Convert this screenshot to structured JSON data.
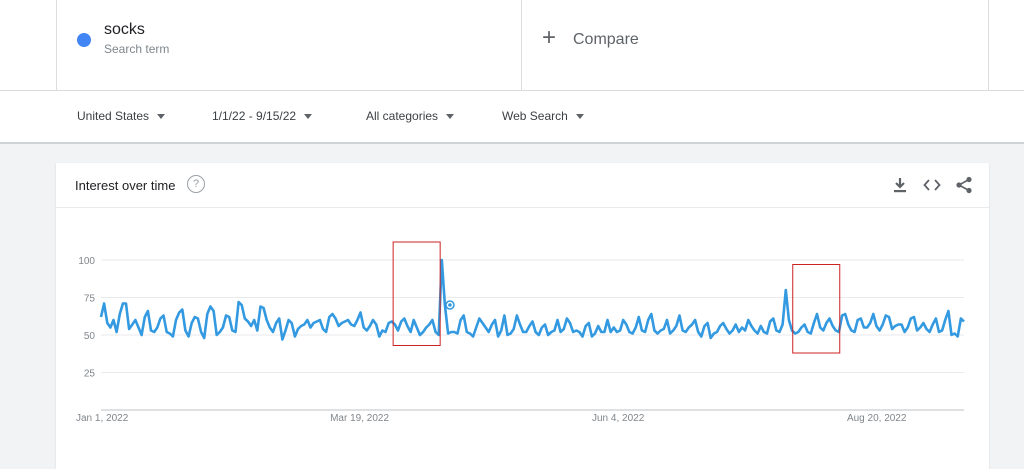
{
  "search_term": {
    "name": "socks",
    "subtitle": "Search term",
    "color": "#4285f4"
  },
  "compare": {
    "plus": "+",
    "label": "Compare"
  },
  "filters": {
    "region": "United States",
    "date_range": "1/1/22 - 9/15/22",
    "category": "All categories",
    "search_type": "Web Search"
  },
  "card": {
    "title": "Interest over time",
    "help_icon": "help-circle-icon",
    "actions": [
      "download-icon",
      "embed-code-icon",
      "share-icon"
    ]
  },
  "chart_data": {
    "type": "line",
    "title": "Interest over time",
    "series": [
      {
        "color": "#3399e0",
        "x_start": "2022-01-01",
        "x_end": "2022-09-15",
        "values": [
          62,
          71,
          58,
          55,
          60,
          52,
          64,
          71,
          71,
          54,
          57,
          60,
          55,
          50,
          62,
          66,
          53,
          52,
          55,
          61,
          63,
          52,
          51,
          49,
          60,
          65,
          67,
          53,
          49,
          58,
          62,
          61,
          52,
          48,
          64,
          69,
          66,
          50,
          52,
          55,
          63,
          62,
          53,
          52,
          72,
          70,
          61,
          59,
          56,
          60,
          53,
          69,
          68,
          60,
          55,
          52,
          58,
          61,
          47,
          53,
          60,
          58,
          49,
          54,
          56,
          57,
          60,
          55,
          58,
          59,
          60,
          54,
          52,
          62,
          64,
          61,
          56,
          58,
          59,
          60,
          57,
          56,
          60,
          65,
          55,
          53,
          56,
          60,
          57,
          49,
          53,
          52,
          58,
          59,
          57,
          53,
          59,
          61,
          56,
          52,
          60,
          55,
          50,
          52,
          55,
          57,
          60,
          52,
          50,
          100,
          70,
          51,
          52,
          52,
          51,
          60,
          63,
          52,
          51,
          49,
          55,
          61,
          58,
          55,
          52,
          57,
          60,
          49,
          53,
          63,
          50,
          51,
          54,
          63,
          57,
          52,
          52,
          56,
          59,
          52,
          50,
          55,
          57,
          50,
          52,
          53,
          60,
          52,
          54,
          61,
          58,
          52,
          53,
          52,
          49,
          56,
          58,
          49,
          51,
          56,
          52,
          52,
          60,
          52,
          55,
          52,
          53,
          60,
          57,
          52,
          51,
          55,
          62,
          53,
          52,
          60,
          64,
          53,
          51,
          53,
          54,
          60,
          51,
          53,
          56,
          63,
          53,
          52,
          55,
          57,
          60,
          52,
          49,
          56,
          58,
          48,
          51,
          52,
          56,
          58,
          54,
          51,
          53,
          57,
          52,
          55,
          53,
          60,
          56,
          53,
          51,
          56,
          52,
          51,
          59,
          61,
          53,
          52,
          57,
          80,
          60,
          53,
          51,
          52,
          55,
          57,
          52,
          51,
          58,
          64,
          55,
          53,
          58,
          61,
          56,
          53,
          52,
          63,
          64,
          57,
          53,
          52,
          60,
          61,
          55,
          55,
          58,
          64,
          56,
          53,
          57,
          63,
          62,
          54,
          56,
          57,
          57,
          52,
          55,
          61,
          62,
          53,
          55,
          58,
          54,
          52,
          57,
          61,
          52,
          53,
          60,
          66,
          50,
          51,
          49,
          61,
          59
        ]
      }
    ],
    "x_tick_labels": [
      "Jan 1, 2022",
      "Mar 19, 2022",
      "Jun 4, 2022",
      "Aug 20, 2022"
    ],
    "x_tick_dates": [
      "2022-01-01",
      "2022-03-19",
      "2022-06-04",
      "2022-08-20"
    ],
    "y_ticks": [
      25,
      50,
      75,
      100
    ],
    "ylim": [
      0,
      100
    ],
    "grid": true,
    "hover_point_index": 110,
    "annotations": [
      {
        "type": "box",
        "color": "#cc2222",
        "x_from": "2022-03-29",
        "x_to": "2022-04-12",
        "y_from": 43,
        "y_to": 112
      },
      {
        "type": "box",
        "color": "#cc2222",
        "x_from": "2022-07-26",
        "x_to": "2022-08-09",
        "y_from": 38,
        "y_to": 97
      }
    ]
  }
}
